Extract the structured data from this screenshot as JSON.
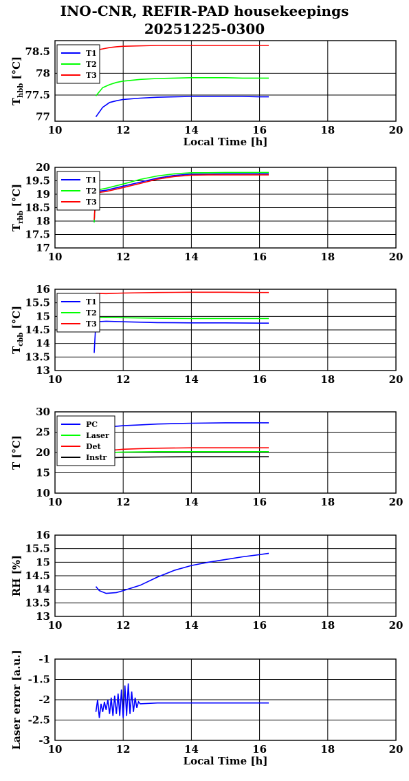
{
  "header": {
    "title_line1": "INO-CNR, REFIR-PAD housekeepings",
    "title_line2": "20251225-0300"
  },
  "colors": {
    "blue": "#0000ff",
    "green": "#00ff00",
    "red": "#ff0000",
    "black": "#000000"
  },
  "chart_data": [
    {
      "type": "line",
      "ylabel": "T_hbb [°C]",
      "ylabel_main": "T",
      "ylabel_sub": "hbb",
      "ylabel_rest": " [°C]",
      "xlabel": "Local Time [h]",
      "xlim": [
        10,
        20
      ],
      "ylim": [
        76.9,
        78.75
      ],
      "yticks": [
        77,
        77.5,
        78,
        78.5
      ],
      "ytick_labels": [
        "77",
        "77.5",
        "78",
        "78.5"
      ],
      "xticks": [
        10,
        12,
        14,
        16,
        18,
        20
      ],
      "xtick_labels": [
        "10",
        "12",
        "14",
        "16",
        "18",
        "20"
      ],
      "grid": true,
      "legend_position": "top-left",
      "series": [
        {
          "name": "T1",
          "color": "#0000ff",
          "points": [
            [
              11.2,
              77.0
            ],
            [
              11.4,
              77.22
            ],
            [
              11.6,
              77.33
            ],
            [
              11.8,
              77.37
            ],
            [
              12.0,
              77.4
            ],
            [
              12.5,
              77.43
            ],
            [
              13.0,
              77.45
            ],
            [
              13.5,
              77.46
            ],
            [
              14.0,
              77.47
            ],
            [
              14.5,
              77.47
            ],
            [
              15.0,
              77.47
            ],
            [
              15.5,
              77.47
            ],
            [
              16.0,
              77.46
            ],
            [
              16.27,
              77.46
            ]
          ]
        },
        {
          "name": "T2",
          "color": "#00ff00",
          "points": [
            [
              11.2,
              77.48
            ],
            [
              11.4,
              77.67
            ],
            [
              11.6,
              77.74
            ],
            [
              11.8,
              77.79
            ],
            [
              12.0,
              77.82
            ],
            [
              12.5,
              77.86
            ],
            [
              13.0,
              77.88
            ],
            [
              13.5,
              77.89
            ],
            [
              14.0,
              77.9
            ],
            [
              14.5,
              77.9
            ],
            [
              15.0,
              77.9
            ],
            [
              15.5,
              77.89
            ],
            [
              16.0,
              77.89
            ],
            [
              16.27,
              77.89
            ]
          ]
        },
        {
          "name": "T3",
          "color": "#ff0000",
          "points": [
            [
              11.2,
              78.53
            ],
            [
              11.4,
              78.56
            ],
            [
              11.6,
              78.59
            ],
            [
              11.8,
              78.61
            ],
            [
              12.0,
              78.62
            ],
            [
              12.5,
              78.63
            ],
            [
              13.0,
              78.64
            ],
            [
              13.5,
              78.64
            ],
            [
              14.0,
              78.64
            ],
            [
              14.5,
              78.64
            ],
            [
              15.0,
              78.64
            ],
            [
              15.5,
              78.64
            ],
            [
              16.0,
              78.64
            ],
            [
              16.27,
              78.64
            ]
          ]
        }
      ]
    },
    {
      "type": "line",
      "ylabel": "T_rbb [°C]",
      "ylabel_main": "T",
      "ylabel_sub": "rbb",
      "ylabel_rest": " [°C]",
      "xlabel": "",
      "xlim": [
        10,
        20
      ],
      "ylim": [
        17,
        20
      ],
      "yticks": [
        17,
        17.5,
        18,
        18.5,
        19,
        19.5,
        20
      ],
      "ytick_labels": [
        "17",
        "17.5",
        "18",
        "18.5",
        "19",
        "19.5",
        "20"
      ],
      "xticks": [
        10,
        12,
        14,
        16,
        18,
        20
      ],
      "xtick_labels": [
        "10",
        "12",
        "14",
        "16",
        "18",
        "20"
      ],
      "grid": true,
      "legend_position": "top-left",
      "series": [
        {
          "name": "T1",
          "color": "#0000ff",
          "points": [
            [
              11.15,
              17.95
            ],
            [
              11.2,
              19.1
            ],
            [
              11.5,
              19.15
            ],
            [
              12.0,
              19.3
            ],
            [
              12.5,
              19.45
            ],
            [
              13.0,
              19.6
            ],
            [
              13.5,
              19.7
            ],
            [
              14.0,
              19.75
            ],
            [
              14.5,
              19.75
            ],
            [
              15.0,
              19.76
            ],
            [
              15.5,
              19.76
            ],
            [
              16.0,
              19.76
            ],
            [
              16.27,
              19.76
            ]
          ]
        },
        {
          "name": "T2",
          "color": "#00ff00",
          "points": [
            [
              11.15,
              17.95
            ],
            [
              11.2,
              19.15
            ],
            [
              11.5,
              19.22
            ],
            [
              12.0,
              19.38
            ],
            [
              12.5,
              19.55
            ],
            [
              13.0,
              19.68
            ],
            [
              13.5,
              19.76
            ],
            [
              14.0,
              19.8
            ],
            [
              14.5,
              19.8
            ],
            [
              15.0,
              19.81
            ],
            [
              15.5,
              19.81
            ],
            [
              16.0,
              19.81
            ],
            [
              16.27,
              19.81
            ]
          ]
        },
        {
          "name": "T3",
          "color": "#ff0000",
          "points": [
            [
              11.15,
              18.05
            ],
            [
              11.2,
              19.05
            ],
            [
              11.5,
              19.1
            ],
            [
              12.0,
              19.25
            ],
            [
              12.5,
              19.4
            ],
            [
              13.0,
              19.56
            ],
            [
              13.5,
              19.66
            ],
            [
              14.0,
              19.71
            ],
            [
              14.5,
              19.72
            ],
            [
              15.0,
              19.72
            ],
            [
              15.5,
              19.72
            ],
            [
              16.0,
              19.72
            ],
            [
              16.27,
              19.72
            ]
          ]
        }
      ]
    },
    {
      "type": "line",
      "ylabel": "T_cbb [°C]",
      "ylabel_main": "T",
      "ylabel_sub": "cbb",
      "ylabel_rest": " [°C]",
      "xlabel": "",
      "xlim": [
        10,
        20
      ],
      "ylim": [
        13,
        16
      ],
      "yticks": [
        13,
        13.5,
        14,
        14.5,
        15,
        15.5,
        16
      ],
      "ytick_labels": [
        "13",
        "13.5",
        "14",
        "14.5",
        "15",
        "15.5",
        "16"
      ],
      "xticks": [
        10,
        12,
        14,
        16,
        18,
        20
      ],
      "xtick_labels": [
        "10",
        "12",
        "14",
        "16",
        "18",
        "20"
      ],
      "grid": true,
      "legend_position": "top-left",
      "series": [
        {
          "name": "T1",
          "color": "#0000ff",
          "points": [
            [
              11.15,
              13.65
            ],
            [
              11.2,
              14.8
            ],
            [
              11.5,
              14.82
            ],
            [
              12.0,
              14.8
            ],
            [
              13.0,
              14.77
            ],
            [
              14.0,
              14.76
            ],
            [
              15.0,
              14.76
            ],
            [
              16.0,
              14.75
            ],
            [
              16.27,
              14.75
            ]
          ]
        },
        {
          "name": "T2",
          "color": "#00ff00",
          "points": [
            [
              11.15,
              14.75
            ],
            [
              11.2,
              14.95
            ],
            [
              11.5,
              14.96
            ],
            [
              12.0,
              14.95
            ],
            [
              13.0,
              14.93
            ],
            [
              14.0,
              14.92
            ],
            [
              15.0,
              14.92
            ],
            [
              16.0,
              14.92
            ],
            [
              16.27,
              14.92
            ]
          ]
        },
        {
          "name": "T3",
          "color": "#ff0000",
          "points": [
            [
              11.2,
              15.85
            ],
            [
              11.5,
              15.84
            ],
            [
              12.0,
              15.86
            ],
            [
              13.0,
              15.88
            ],
            [
              14.0,
              15.89
            ],
            [
              15.0,
              15.89
            ],
            [
              16.0,
              15.88
            ],
            [
              16.27,
              15.88
            ]
          ]
        }
      ]
    },
    {
      "type": "line",
      "ylabel": "T [°C]",
      "ylabel_main": "T [°C]",
      "ylabel_sub": "",
      "ylabel_rest": "",
      "xlabel": "",
      "xlim": [
        10,
        20
      ],
      "ylim": [
        10,
        30
      ],
      "yticks": [
        10,
        15,
        20,
        25,
        30
      ],
      "ytick_labels": [
        "10",
        "15",
        "20",
        "25",
        "30"
      ],
      "xticks": [
        10,
        12,
        14,
        16,
        18,
        20
      ],
      "xtick_labels": [
        "10",
        "12",
        "14",
        "16",
        "18",
        "20"
      ],
      "grid": true,
      "legend_position": "top-left",
      "series": [
        {
          "name": "PC",
          "color": "#0000ff",
          "points": [
            [
              11.2,
              26.0
            ],
            [
              11.6,
              26.3
            ],
            [
              12.0,
              26.6
            ],
            [
              12.5,
              26.8
            ],
            [
              13.0,
              27.0
            ],
            [
              13.5,
              27.1
            ],
            [
              14.0,
              27.2
            ],
            [
              15.0,
              27.3
            ],
            [
              16.0,
              27.3
            ],
            [
              16.27,
              27.3
            ]
          ]
        },
        {
          "name": "Laser",
          "color": "#00ff00",
          "points": [
            [
              11.2,
              19.9
            ],
            [
              11.6,
              20.0
            ],
            [
              12.0,
              20.1
            ],
            [
              13.0,
              20.2
            ],
            [
              14.0,
              20.2
            ],
            [
              15.0,
              20.2
            ],
            [
              16.0,
              20.2
            ],
            [
              16.27,
              20.2
            ]
          ]
        },
        {
          "name": "Det",
          "color": "#ff0000",
          "points": [
            [
              11.2,
              20.3
            ],
            [
              11.6,
              20.5
            ],
            [
              12.0,
              20.8
            ],
            [
              12.5,
              20.95
            ],
            [
              13.0,
              21.05
            ],
            [
              14.0,
              21.15
            ],
            [
              15.0,
              21.15
            ],
            [
              16.0,
              21.15
            ],
            [
              16.27,
              21.15
            ]
          ]
        },
        {
          "name": "Instr",
          "color": "#000000",
          "points": [
            [
              11.2,
              18.6
            ],
            [
              11.6,
              18.7
            ],
            [
              12.0,
              18.8
            ],
            [
              13.0,
              18.9
            ],
            [
              14.0,
              18.95
            ],
            [
              15.0,
              18.95
            ],
            [
              16.0,
              18.95
            ],
            [
              16.27,
              18.95
            ]
          ]
        }
      ]
    },
    {
      "type": "line",
      "ylabel": "RH [%]",
      "ylabel_main": "RH [%]",
      "ylabel_sub": "",
      "ylabel_rest": "",
      "xlabel": "",
      "xlim": [
        10,
        20
      ],
      "ylim": [
        13,
        16
      ],
      "yticks": [
        13,
        13.5,
        14,
        14.5,
        15,
        15.5,
        16
      ],
      "ytick_labels": [
        "13",
        "13.5",
        "14",
        "14.5",
        "15",
        "15.5",
        "16"
      ],
      "xticks": [
        10,
        12,
        14,
        16,
        18,
        20
      ],
      "xtick_labels": [
        "10",
        "12",
        "14",
        "16",
        "18",
        "20"
      ],
      "grid": true,
      "legend_position": "none",
      "series": [
        {
          "name": "",
          "color": "#0000ff",
          "points": [
            [
              11.2,
              14.1
            ],
            [
              11.3,
              13.95
            ],
            [
              11.5,
              13.85
            ],
            [
              11.8,
              13.88
            ],
            [
              12.0,
              13.95
            ],
            [
              12.5,
              14.15
            ],
            [
              13.0,
              14.45
            ],
            [
              13.5,
              14.7
            ],
            [
              14.0,
              14.88
            ],
            [
              14.5,
              15.0
            ],
            [
              15.0,
              15.1
            ],
            [
              15.5,
              15.2
            ],
            [
              16.0,
              15.28
            ],
            [
              16.27,
              15.33
            ]
          ]
        }
      ]
    },
    {
      "type": "line",
      "ylabel": "Laser error [a.u.]",
      "ylabel_main": "Laser error [a.u.]",
      "ylabel_sub": "",
      "ylabel_rest": "",
      "xlabel": "Local Time [h]",
      "xlim": [
        10,
        20
      ],
      "ylim": [
        -3,
        -1
      ],
      "yticks": [
        -3,
        -2.5,
        -2,
        -1.5,
        -1
      ],
      "ytick_labels": [
        "-3",
        "-2.5",
        "-2",
        "-1.5",
        "-1"
      ],
      "xticks": [
        10,
        12,
        14,
        16,
        18,
        20
      ],
      "xtick_labels": [
        "10",
        "12",
        "14",
        "16",
        "18",
        "20"
      ],
      "grid": true,
      "legend_position": "none",
      "series": [
        {
          "name": "",
          "color": "#0000ff",
          "points": [
            [
              11.2,
              -2.3
            ],
            [
              11.25,
              -2.0
            ],
            [
              11.3,
              -2.45
            ],
            [
              11.35,
              -2.1
            ],
            [
              11.4,
              -2.3
            ],
            [
              11.45,
              -2.05
            ],
            [
              11.5,
              -2.25
            ],
            [
              11.55,
              -2.0
            ],
            [
              11.6,
              -2.35
            ],
            [
              11.65,
              -1.95
            ],
            [
              11.7,
              -2.4
            ],
            [
              11.75,
              -1.9
            ],
            [
              11.8,
              -2.35
            ],
            [
              11.85,
              -1.85
            ],
            [
              11.9,
              -2.4
            ],
            [
              11.95,
              -1.75
            ],
            [
              12.0,
              -2.45
            ],
            [
              12.05,
              -1.65
            ],
            [
              12.1,
              -2.4
            ],
            [
              12.15,
              -1.6
            ],
            [
              12.2,
              -2.35
            ],
            [
              12.25,
              -1.8
            ],
            [
              12.3,
              -2.3
            ],
            [
              12.35,
              -1.95
            ],
            [
              12.4,
              -2.2
            ],
            [
              12.45,
              -2.05
            ],
            [
              12.5,
              -2.1
            ],
            [
              13.0,
              -2.08
            ],
            [
              14.0,
              -2.08
            ],
            [
              15.0,
              -2.08
            ],
            [
              16.0,
              -2.08
            ],
            [
              16.27,
              -2.08
            ]
          ]
        }
      ]
    }
  ]
}
